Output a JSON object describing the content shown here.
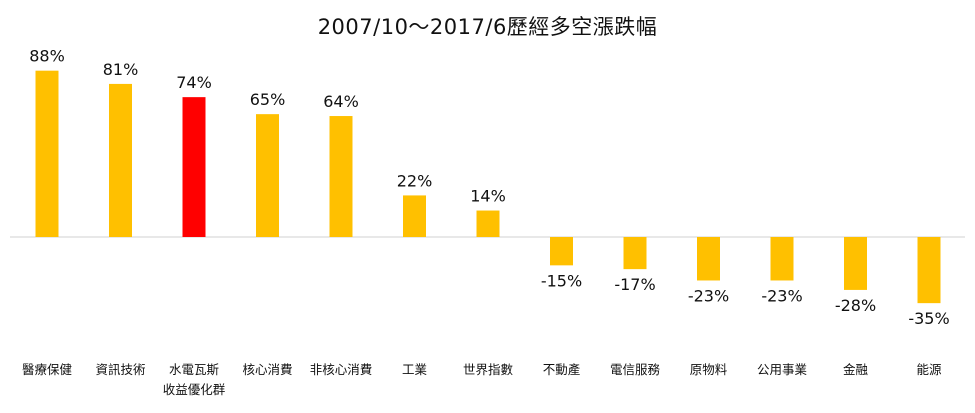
{
  "chart_data": {
    "type": "bar",
    "title": "2007/10～2017/6歷經多空漲跌幅",
    "categories": [
      "醫療保健",
      "資訊技術",
      "水電瓦斯\n收益優化群",
      "核心消費",
      "非核心消費",
      "工業",
      "世界指數",
      "不動產",
      "電信服務",
      "原物料",
      "公用事業",
      "金融",
      "能源"
    ],
    "values": [
      88,
      81,
      74,
      65,
      64,
      22,
      14,
      -15,
      -17,
      -23,
      -23,
      -28,
      -35
    ],
    "value_labels": [
      "88%",
      "81%",
      "74%",
      "65%",
      "64%",
      "22%",
      "14%",
      "-15%",
      "-17%",
      "-23%",
      "-23%",
      "-28%",
      "-35%"
    ],
    "highlight_index": 2,
    "colors": {
      "default": "#FFC000",
      "highlight": "#FF0000",
      "baseline": "#D9D9D9"
    },
    "ylim": [
      -40,
      95
    ],
    "grid": false,
    "legend": "none",
    "xlabel": "",
    "ylabel": ""
  }
}
